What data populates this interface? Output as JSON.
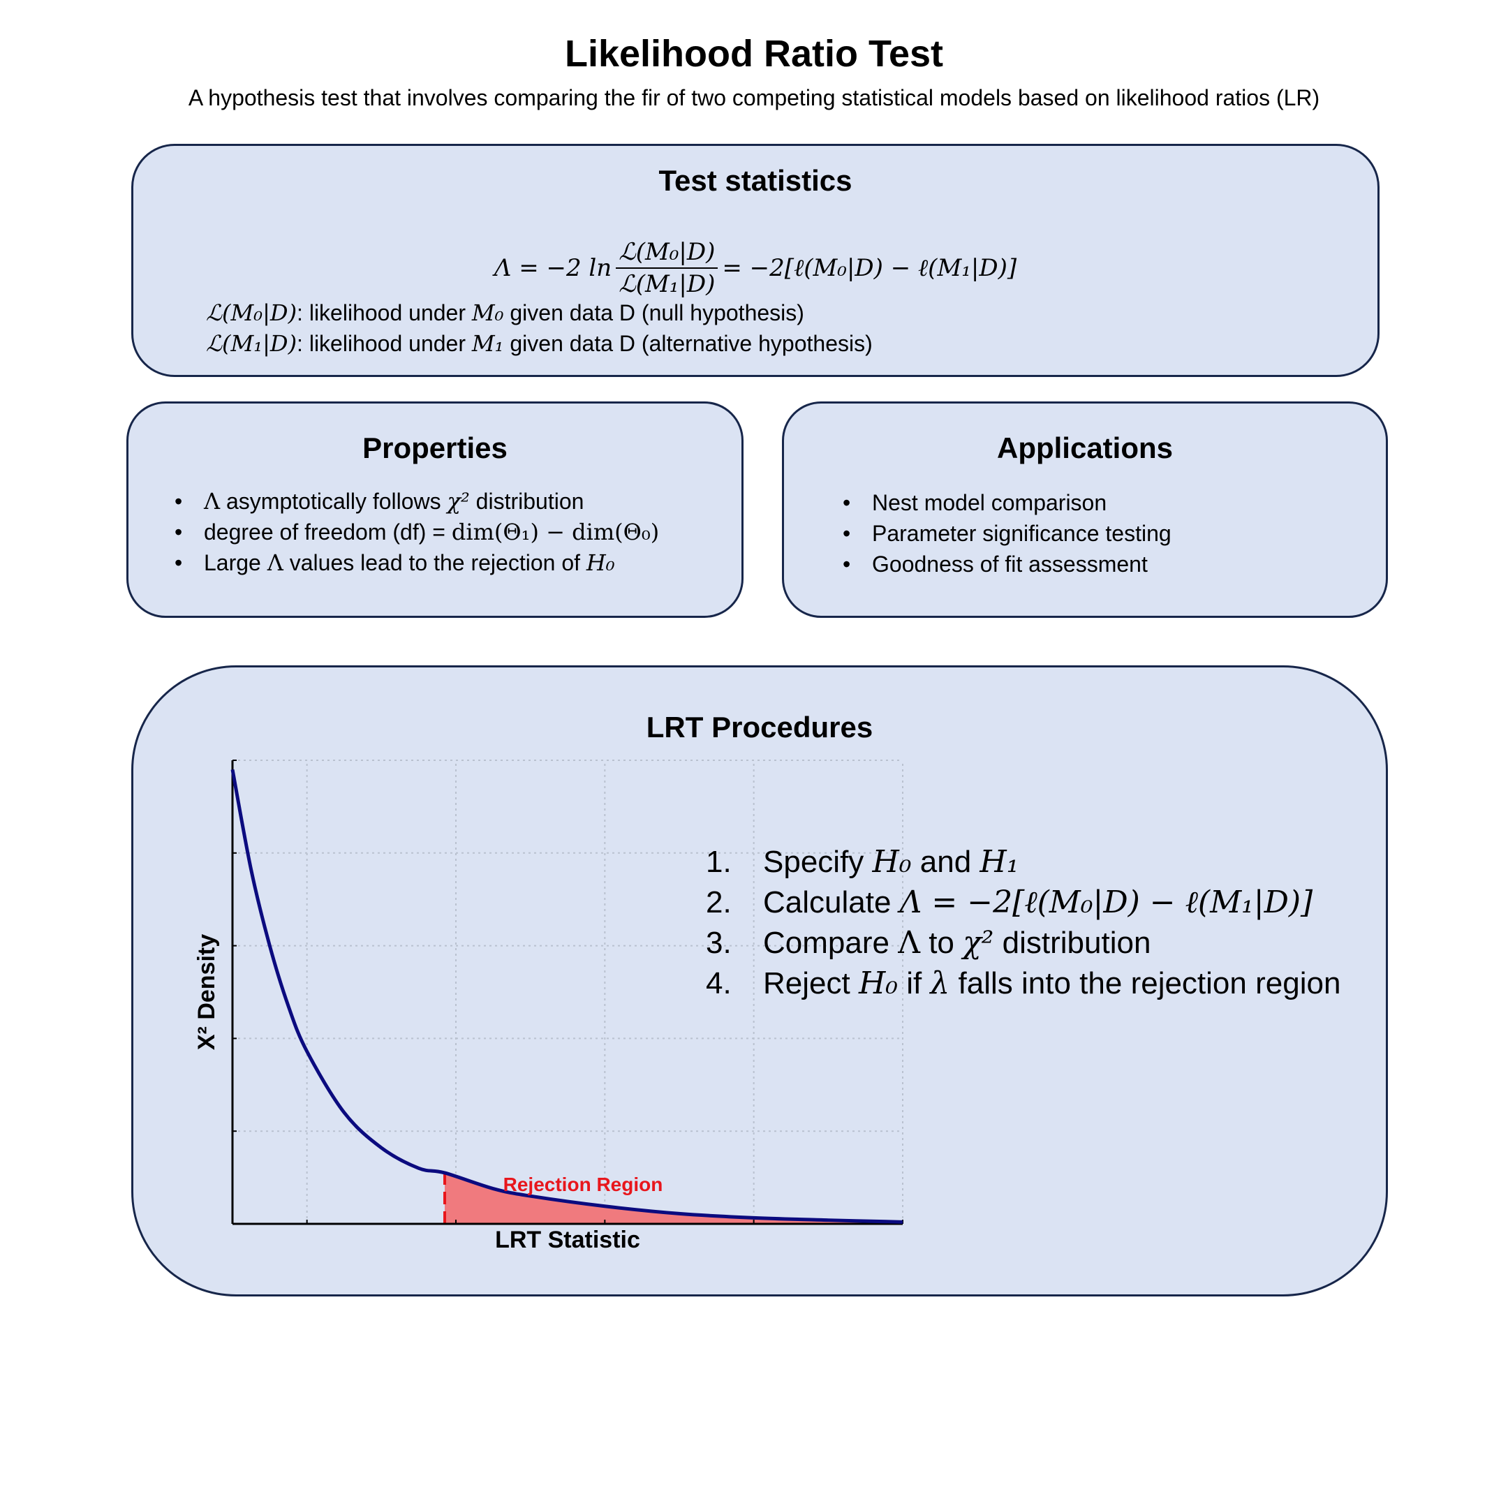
{
  "header": {
    "title": "Likelihood Ratio Test",
    "subtitle": "A hypothesis test that involves comparing the fir of two competing statistical models based on likelihood ratios (LR)"
  },
  "test_statistics": {
    "title": "Test statistics",
    "formula": {
      "lhs": "Λ = −2 ln",
      "numerator": "ℒ(M₀|D)",
      "denominator": "ℒ(M₁|D)",
      "rhs": "= −2[ℓ(M₀|D) − ℓ(M₁|D)]"
    },
    "definitions": [
      {
        "symbol": "ℒ(M₀|D)",
        "text": ": likelihood under ",
        "model": "M₀",
        "rest": " given data D (null hypothesis)"
      },
      {
        "symbol": "ℒ(M₁|D)",
        "text": ": likelihood under ",
        "model": "M₁",
        "rest": " given data D (alternative hypothesis)"
      }
    ]
  },
  "properties": {
    "title": "Properties",
    "items": [
      {
        "a": "Λ",
        "b": " asymptotically follows ",
        "c": "χ²",
        "d": " distribution"
      },
      {
        "a": "degree of freedom (df) = ",
        "b": "dim(Θ₁) − dim(Θ₀)"
      },
      {
        "a": "Large ",
        "b": "Λ",
        "c": " values lead to the rejection of ",
        "d": "H₀"
      }
    ]
  },
  "applications": {
    "title": "Applications",
    "items": [
      "Nest model comparison",
      "Parameter significance testing",
      "Goodness of fit assessment"
    ]
  },
  "procedures": {
    "title": "LRT Procedures",
    "steps": [
      {
        "num": "1.",
        "parts": [
          "Specify ",
          "H₀",
          " and ",
          "H₁"
        ]
      },
      {
        "num": "2.",
        "parts": [
          "Calculate ",
          "Λ = −2[ℓ(M₀|D) − ℓ(M₁|D)]"
        ]
      },
      {
        "num": "3.",
        "parts": [
          "Compare ",
          "Λ",
          " to ",
          "χ²",
          " distribution"
        ]
      },
      {
        "num": "4.",
        "parts": [
          "Reject ",
          "H₀",
          " if ",
          "λ",
          " falls into the rejection region"
        ]
      }
    ]
  },
  "chart_data": {
    "type": "area",
    "xlabel": "LRT Statistic",
    "ylabel": "Χ² Density",
    "xlim": [
      0,
      9
    ],
    "ylim": [
      0,
      5
    ],
    "x_ticks": [
      0,
      1,
      3,
      5,
      7,
      9
    ],
    "y_ticks": [
      0,
      1,
      2,
      3,
      4,
      5
    ],
    "grid": true,
    "series": [
      {
        "color": "#0b0b7f",
        "x": [
          0,
          0.25,
          0.5,
          0.75,
          1,
          1.5,
          2,
          2.5,
          2.85,
          3.5,
          4,
          5,
          6,
          7,
          8,
          9
        ],
        "y": [
          4.9,
          3.82,
          3.0,
          2.35,
          1.86,
          1.2,
          0.82,
          0.6,
          0.55,
          0.38,
          0.3,
          0.19,
          0.11,
          0.065,
          0.04,
          0.02
        ]
      }
    ],
    "rejection_region": {
      "label": "Rejection Region",
      "x_start": 2.85,
      "x_end": 9,
      "fill": "#f07a7e",
      "line_color": "#e8161c"
    }
  }
}
